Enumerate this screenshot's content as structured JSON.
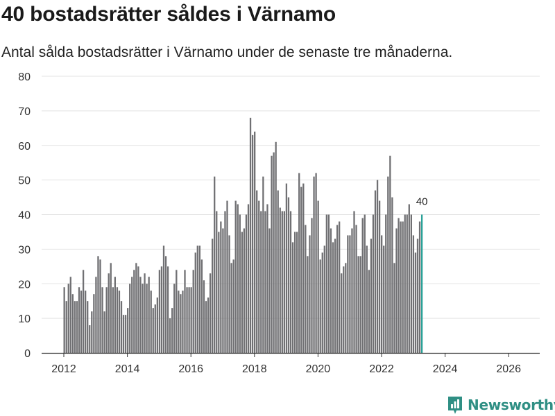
{
  "header": {
    "title": "40 bostadsrätter såldes i Värnamo",
    "subtitle": "Antal sålda bostadsrätter i Värnamo under de senaste tre månaderna."
  },
  "logo": {
    "text": "Newsworthy",
    "icon": "bar-chart-icon",
    "color": "#2f8f84"
  },
  "colors": {
    "bar": "#707073",
    "highlight": "#2aa198",
    "grid": "#e3e3e3",
    "axis": "#333333"
  },
  "chart_data": {
    "type": "bar",
    "title": "40 bostadsrätter såldes i Värnamo",
    "xlabel": "",
    "ylabel": "",
    "ylim": [
      0,
      80
    ],
    "yticks": [
      0,
      10,
      20,
      30,
      40,
      50,
      60,
      70,
      80
    ],
    "xticks": [
      "2012",
      "2014",
      "2016",
      "2018",
      "2020",
      "2022",
      "2024",
      "2026"
    ],
    "x_start": "2012-01",
    "x_end": "2026-03",
    "highlight_label": "40",
    "values": [
      19,
      15,
      20,
      22,
      17,
      15,
      15,
      19,
      18,
      24,
      18,
      15,
      8,
      12,
      17,
      22,
      28,
      27,
      19,
      12,
      19,
      23,
      26,
      19,
      22,
      19,
      18,
      15,
      11,
      11,
      13,
      20,
      22,
      24,
      26,
      25,
      22,
      20,
      23,
      20,
      22,
      18,
      13,
      14,
      16,
      24,
      25,
      31,
      28,
      25,
      10,
      13,
      20,
      24,
      18,
      17,
      18,
      24,
      19,
      19,
      19,
      24,
      29,
      31,
      31,
      27,
      21,
      15,
      16,
      23,
      33,
      51,
      41,
      35,
      38,
      36,
      41,
      44,
      34,
      26,
      27,
      44,
      43,
      40,
      35,
      36,
      40,
      43,
      68,
      63,
      64,
      47,
      44,
      41,
      51,
      41,
      43,
      36,
      57,
      58,
      61,
      47,
      42,
      41,
      41,
      49,
      45,
      41,
      32,
      35,
      35,
      52,
      48,
      49,
      37,
      28,
      34,
      39,
      51,
      52,
      44,
      27,
      29,
      31,
      40,
      40,
      36,
      32,
      33,
      37,
      38,
      23,
      25,
      26,
      34,
      34,
      36,
      41,
      37,
      28,
      28,
      39,
      40,
      31,
      24,
      33,
      40,
      47,
      50,
      44,
      34,
      31,
      40,
      51,
      57,
      45,
      26,
      36,
      39,
      38,
      38,
      40,
      40,
      43,
      40,
      34,
      29,
      33,
      38,
      40
    ]
  }
}
